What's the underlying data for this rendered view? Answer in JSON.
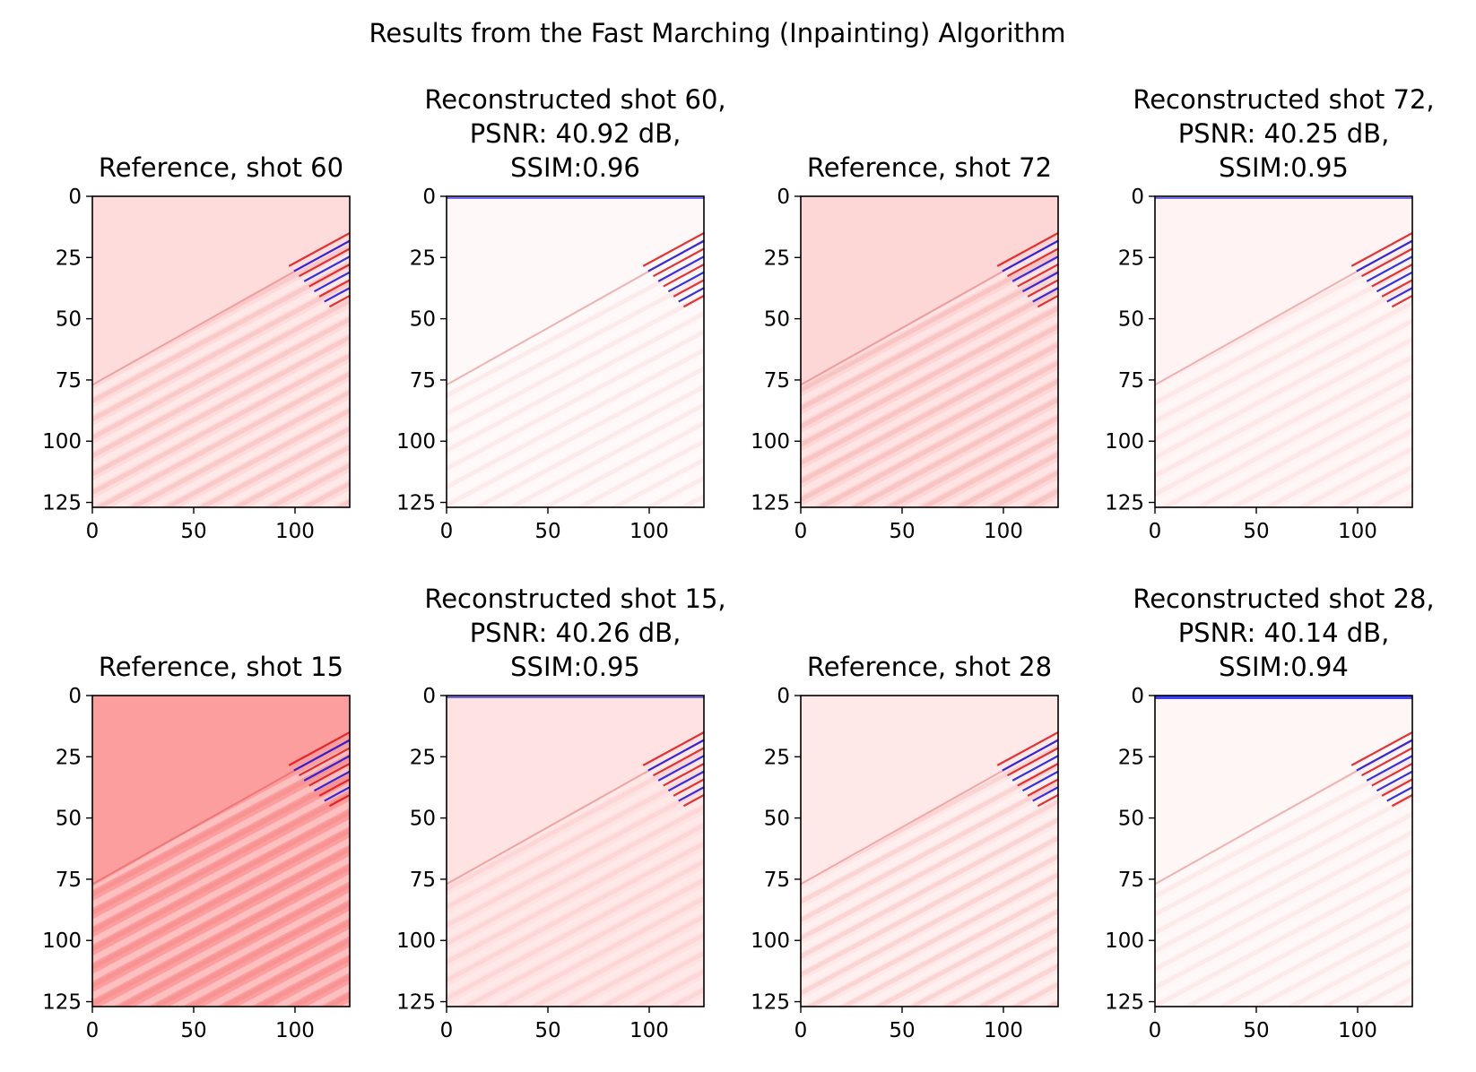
{
  "figure": {
    "suptitle": "Results from the Fast Marching (Inpainting) Algorithm"
  },
  "colors": {
    "seismic_blue": "#0000ff",
    "seismic_red": "#ff0000",
    "seismic_center": "#ffffff"
  },
  "chart_data": [
    {
      "type": "heatmap",
      "panel": "reference",
      "title_lines": [
        "Reference, shot 60"
      ],
      "xticks": [
        "0",
        "50",
        "100"
      ],
      "yticks": [
        "0",
        "25",
        "50",
        "75",
        "100",
        "125"
      ],
      "xlim": [
        0,
        127
      ],
      "ylim": [
        127,
        0
      ],
      "background": "#fedcdc"
    },
    {
      "type": "heatmap",
      "panel": "reconstructed",
      "title_lines": [
        "Reconstructed shot 60,",
        "PSNR: 40.92 dB,",
        "SSIM:0.96"
      ],
      "psnr_db": 40.92,
      "ssim": 0.96,
      "xticks": [
        "0",
        "50",
        "100"
      ],
      "yticks": [
        "0",
        "25",
        "50",
        "75",
        "100",
        "125"
      ],
      "xlim": [
        0,
        127
      ],
      "ylim": [
        127,
        0
      ],
      "background": "#fff8f8"
    },
    {
      "type": "heatmap",
      "panel": "reference",
      "title_lines": [
        "Reference, shot 72"
      ],
      "xticks": [
        "0",
        "50",
        "100"
      ],
      "yticks": [
        "0",
        "25",
        "50",
        "75",
        "100",
        "125"
      ],
      "xlim": [
        0,
        127
      ],
      "ylim": [
        127,
        0
      ],
      "background": "#fdd6d6"
    },
    {
      "type": "heatmap",
      "panel": "reconstructed",
      "title_lines": [
        "Reconstructed shot 72,",
        "PSNR: 40.25 dB,",
        "SSIM:0.95"
      ],
      "psnr_db": 40.25,
      "ssim": 0.95,
      "xticks": [
        "0",
        "50",
        "100"
      ],
      "yticks": [
        "0",
        "25",
        "50",
        "75",
        "100",
        "125"
      ],
      "xlim": [
        0,
        127
      ],
      "ylim": [
        127,
        0
      ],
      "background": "#fff3f3"
    },
    {
      "type": "heatmap",
      "panel": "reference",
      "title_lines": [
        "Reference, shot 15"
      ],
      "xticks": [
        "0",
        "50",
        "100"
      ],
      "yticks": [
        "0",
        "25",
        "50",
        "75",
        "100",
        "125"
      ],
      "xlim": [
        0,
        127
      ],
      "ylim": [
        127,
        0
      ],
      "background": "#fc9e9e"
    },
    {
      "type": "heatmap",
      "panel": "reconstructed",
      "title_lines": [
        "Reconstructed shot 15,",
        "PSNR: 40.26 dB,",
        "SSIM:0.95"
      ],
      "psnr_db": 40.26,
      "ssim": 0.95,
      "xticks": [
        "0",
        "50",
        "100"
      ],
      "yticks": [
        "0",
        "25",
        "50",
        "75",
        "100",
        "125"
      ],
      "xlim": [
        0,
        127
      ],
      "ylim": [
        127,
        0
      ],
      "background": "#ffe2e2"
    },
    {
      "type": "heatmap",
      "panel": "reference",
      "title_lines": [
        "Reference, shot 28"
      ],
      "xticks": [
        "0",
        "50",
        "100"
      ],
      "yticks": [
        "0",
        "25",
        "50",
        "75",
        "100",
        "125"
      ],
      "xlim": [
        0,
        127
      ],
      "ylim": [
        127,
        0
      ],
      "background": "#ffe8e8"
    },
    {
      "type": "heatmap",
      "panel": "reconstructed",
      "title_lines": [
        "Reconstructed shot 28,",
        "PSNR: 40.14 dB,",
        "SSIM:0.94"
      ],
      "psnr_db": 40.14,
      "ssim": 0.94,
      "xticks": [
        "0",
        "50",
        "100"
      ],
      "yticks": [
        "0",
        "25",
        "50",
        "75",
        "100",
        "125"
      ],
      "xlim": [
        0,
        127
      ],
      "ylim": [
        127,
        0
      ],
      "background": "#fff6f6"
    }
  ]
}
